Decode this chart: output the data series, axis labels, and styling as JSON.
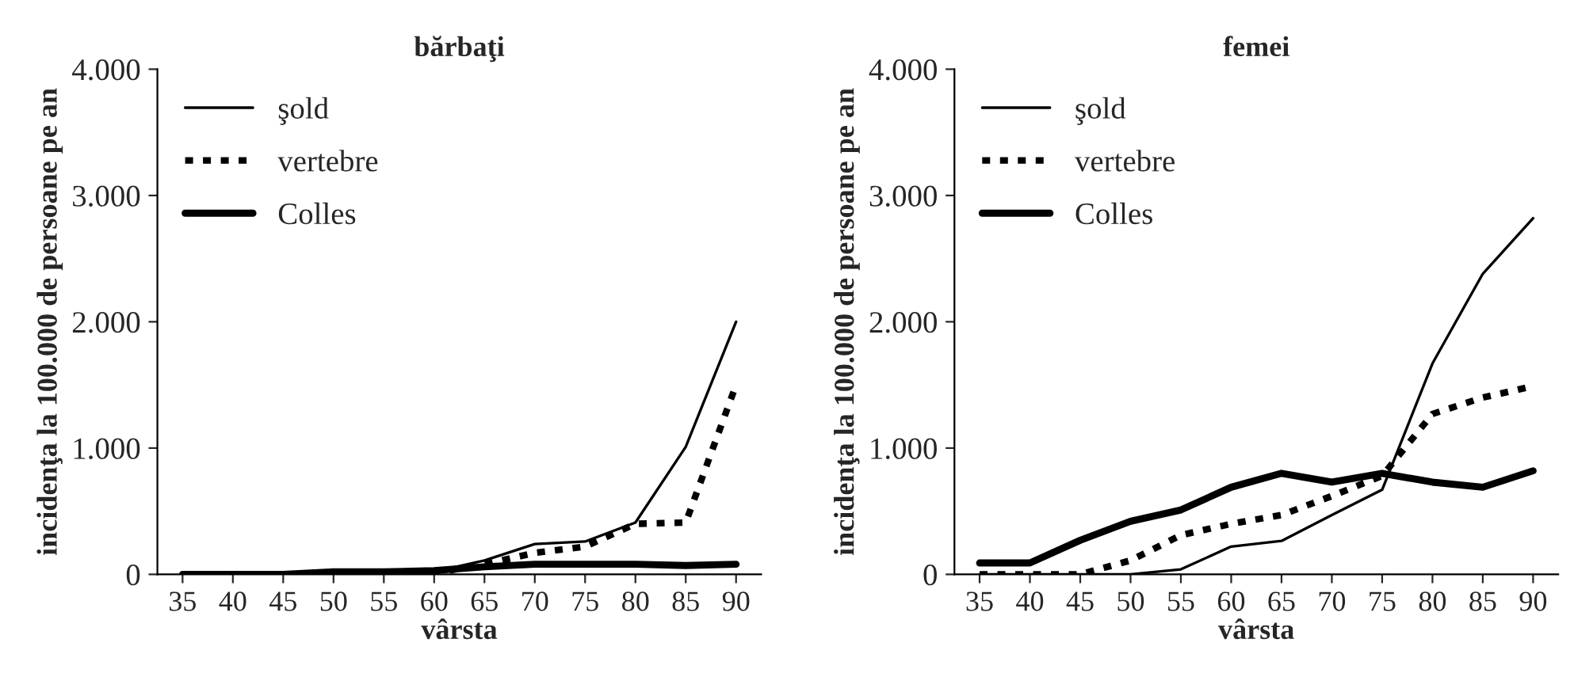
{
  "chart_data": [
    {
      "type": "line",
      "title": "bărbaţi",
      "xlabel": "vârsta",
      "ylabel": "incidenţa la 100.000 de persoane pe an",
      "categories": [
        "35",
        "40",
        "45",
        "50",
        "55",
        "60",
        "65",
        "70",
        "75",
        "80",
        "85",
        "90"
      ],
      "series": [
        {
          "name": "şold",
          "color": "#000000",
          "line_style": "solid",
          "values": [
            0,
            0,
            0,
            10,
            10,
            20,
            110,
            240,
            260,
            410,
            1010,
            2000
          ]
        },
        {
          "name": "vertebre",
          "color": "#000000",
          "line_style": "dotted",
          "values": [
            0,
            0,
            0,
            0,
            0,
            10,
            80,
            170,
            220,
            400,
            410,
            1500
          ]
        },
        {
          "name": "Colles",
          "color": "#000000",
          "line_style": "solid",
          "values": [
            0,
            0,
            0,
            20,
            20,
            30,
            60,
            80,
            80,
            80,
            70,
            80
          ]
        }
      ],
      "ylim": [
        0,
        4000
      ],
      "yticks": [
        {
          "value": 0,
          "label": "0"
        },
        {
          "value": 1000,
          "label": "1.000"
        },
        {
          "value": 2000,
          "label": "2.000"
        },
        {
          "value": 3000,
          "label": "3.000"
        },
        {
          "value": 4000,
          "label": "4.000"
        }
      ],
      "legend": "top left",
      "grid": false
    },
    {
      "type": "line",
      "title": "femei",
      "xlabel": "vârsta",
      "ylabel": "incidenţa la 100.000 de persoane pe an",
      "categories": [
        "35",
        "40",
        "45",
        "50",
        "55",
        "60",
        "65",
        "70",
        "75",
        "80",
        "85",
        "90"
      ],
      "series": [
        {
          "name": "şold",
          "color": "#000000",
          "line_style": "solid",
          "values": [
            0,
            0,
            0,
            0,
            40,
            220,
            265,
            470,
            670,
            1670,
            2380,
            2820
          ]
        },
        {
          "name": "vertebre",
          "color": "#000000",
          "line_style": "dotted",
          "values": [
            0,
            0,
            0,
            110,
            310,
            400,
            470,
            620,
            780,
            1270,
            1400,
            1490
          ]
        },
        {
          "name": "Colles",
          "color": "#000000",
          "line_style": "solid",
          "values": [
            90,
            90,
            270,
            420,
            510,
            690,
            800,
            730,
            800,
            730,
            690,
            820
          ]
        }
      ],
      "ylim": [
        0,
        4000
      ],
      "yticks": [
        {
          "value": 0,
          "label": "0"
        },
        {
          "value": 1000,
          "label": "1.000"
        },
        {
          "value": 2000,
          "label": "2.000"
        },
        {
          "value": 3000,
          "label": "3.000"
        },
        {
          "value": 4000,
          "label": "4.000"
        }
      ],
      "legend": "top left",
      "grid": false
    }
  ]
}
